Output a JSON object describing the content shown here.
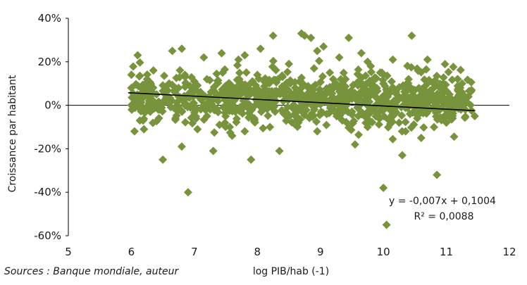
{
  "chart_data": {
    "type": "scatter",
    "xlabel": "log PIB/hab (-1)",
    "ylabel": "Croissance par habitant",
    "xlim": [
      5,
      12
    ],
    "ylim": [
      -0.6,
      0.4
    ],
    "x_ticks": [
      "5",
      "6",
      "7",
      "8",
      "9",
      "10",
      "11",
      "12"
    ],
    "y_ticks": [
      "40%",
      "20%",
      "0%",
      "-20%",
      "-40%",
      "-60%"
    ],
    "marker_color": "#77933c",
    "marker": "diamond",
    "trendline": {
      "type": "linear",
      "slope": -0.007,
      "intercept": 0.1004,
      "x_range": [
        5.95,
        11.45
      ],
      "equation": "y = -0,007x + 0,1004",
      "r2": "R² = 0,0088",
      "color": "#000000"
    },
    "points": [
      [
        6.1,
        0.23
      ],
      [
        6.3,
        0.0
      ],
      [
        6.15,
        0.0
      ],
      [
        6.05,
        -0.12
      ],
      [
        6.2,
        -0.11
      ],
      [
        6.3,
        -0.03
      ],
      [
        6.45,
        -0.02
      ],
      [
        6.5,
        -0.25
      ],
      [
        6.65,
        0.25
      ],
      [
        6.8,
        0.26
      ],
      [
        6.9,
        -0.4
      ],
      [
        6.8,
        -0.19
      ],
      [
        7.0,
        0.11
      ],
      [
        7.05,
        -0.11
      ],
      [
        7.15,
        0.22
      ],
      [
        7.2,
        -0.05
      ],
      [
        7.3,
        -0.21
      ],
      [
        7.45,
        0.15
      ],
      [
        7.6,
        0.02
      ],
      [
        7.7,
        0.21
      ],
      [
        7.8,
        0.23
      ],
      [
        7.6,
        -0.14
      ],
      [
        7.9,
        -0.25
      ],
      [
        8.05,
        0.26
      ],
      [
        8.15,
        0.11
      ],
      [
        8.25,
        0.32
      ],
      [
        8.35,
        -0.21
      ],
      [
        8.5,
        0.19
      ],
      [
        8.6,
        0.08
      ],
      [
        8.7,
        0.33
      ],
      [
        8.75,
        0.32
      ],
      [
        8.85,
        0.31
      ],
      [
        8.95,
        0.25
      ],
      [
        9.05,
        0.27
      ],
      [
        9.15,
        0.15
      ],
      [
        9.3,
        0.22
      ],
      [
        9.45,
        0.31
      ],
      [
        9.55,
        -0.18
      ],
      [
        9.65,
        0.24
      ],
      [
        9.75,
        0.2
      ],
      [
        9.8,
        0.18
      ],
      [
        9.95,
        0.15
      ],
      [
        10.0,
        -0.38
      ],
      [
        10.05,
        -0.55
      ],
      [
        10.15,
        0.21
      ],
      [
        10.3,
        -0.23
      ],
      [
        10.45,
        0.32
      ],
      [
        10.5,
        0.07
      ],
      [
        10.6,
        -0.15
      ],
      [
        10.7,
        0.21
      ],
      [
        10.85,
        -0.32
      ],
      [
        10.95,
        0.1
      ],
      [
        11.1,
        -0.06
      ],
      [
        11.25,
        0.1
      ],
      [
        11.4,
        0.07
      ],
      [
        11.45,
        -0.05
      ],
      [
        11.35,
        0.04
      ],
      [
        11.15,
        0.03
      ],
      [
        11.0,
        -0.08
      ],
      [
        10.75,
        0.05
      ],
      [
        6.0,
        0.08
      ],
      [
        6.25,
        0.12
      ],
      [
        6.4,
        0.05
      ],
      [
        6.55,
        0.02
      ],
      [
        6.6,
        0.1
      ],
      [
        6.7,
        -0.06
      ],
      [
        6.75,
        0.08
      ],
      [
        6.85,
        0.14
      ],
      [
        6.95,
        0.0
      ],
      [
        7.1,
        0.06
      ],
      [
        7.2,
        0.12
      ],
      [
        7.35,
        0.03
      ],
      [
        7.4,
        -0.09
      ],
      [
        7.5,
        0.09
      ],
      [
        7.55,
        0.05
      ],
      [
        7.65,
        -0.03
      ],
      [
        7.75,
        0.1
      ],
      [
        7.85,
        0.04
      ],
      [
        7.95,
        -0.06
      ],
      [
        8.0,
        0.14
      ],
      [
        8.1,
        0.02
      ],
      [
        8.2,
        -0.1
      ],
      [
        8.3,
        0.06
      ],
      [
        8.4,
        0.13
      ],
      [
        8.45,
        -0.03
      ],
      [
        8.55,
        0.05
      ],
      [
        8.65,
        -0.08
      ],
      [
        8.7,
        0.1
      ],
      [
        8.8,
        0.02
      ],
      [
        8.9,
        0.17
      ],
      [
        8.95,
        -0.12
      ],
      [
        9.0,
        0.06
      ],
      [
        9.1,
        -0.04
      ],
      [
        9.2,
        0.09
      ],
      [
        9.25,
        0.01
      ],
      [
        9.35,
        -0.07
      ],
      [
        9.4,
        0.12
      ],
      [
        9.5,
        0.03
      ],
      [
        9.6,
        -0.05
      ],
      [
        9.7,
        0.08
      ],
      [
        9.75,
        -0.1
      ],
      [
        9.85,
        0.05
      ],
      [
        9.9,
        0.0
      ],
      [
        10.0,
        0.1
      ],
      [
        10.1,
        -0.02
      ],
      [
        10.2,
        0.06
      ],
      [
        10.25,
        -0.08
      ],
      [
        10.35,
        0.03
      ],
      [
        10.4,
        0.12
      ],
      [
        10.55,
        -0.04
      ],
      [
        10.65,
        0.02
      ],
      [
        10.8,
        0.08
      ],
      [
        10.9,
        -0.02
      ],
      [
        11.05,
        0.05
      ],
      [
        11.2,
        0.08
      ],
      [
        11.3,
        -0.02
      ],
      [
        6.35,
        0.16
      ],
      [
        6.9,
        0.05
      ],
      [
        7.25,
        -0.02
      ],
      [
        7.8,
        -0.12
      ]
    ]
  },
  "source": "Sources : Banque mondiale, auteur"
}
